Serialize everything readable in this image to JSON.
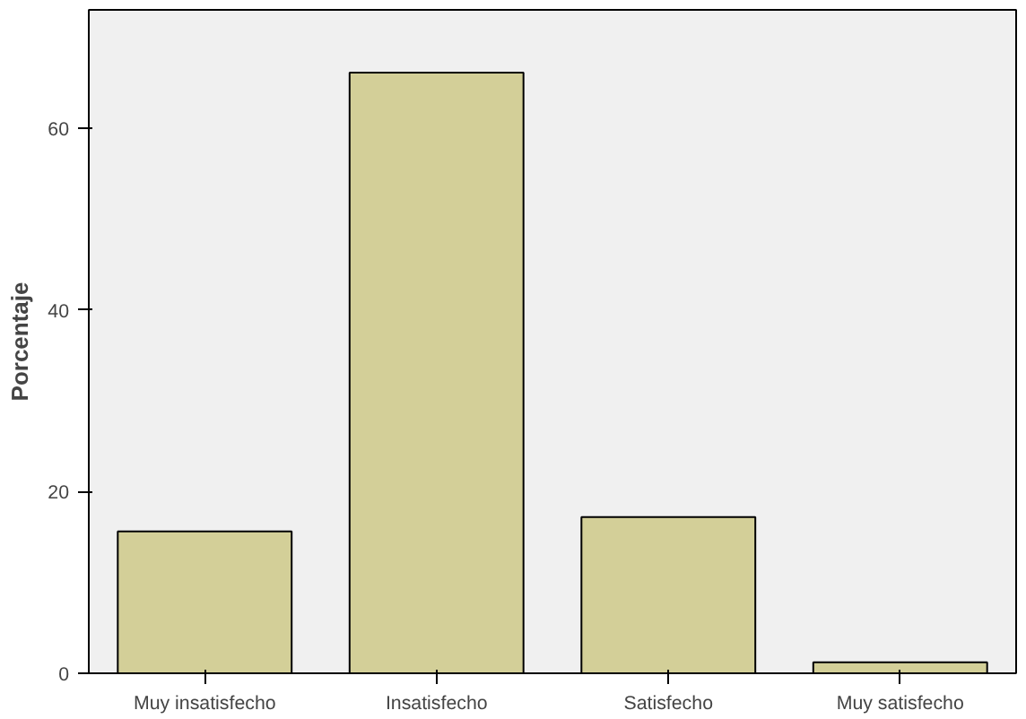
{
  "chart_data": {
    "type": "bar",
    "ylabel": "Porcentaje",
    "categories": [
      "Muy insatisfecho",
      "Insatisfecho",
      "Satisfecho",
      "Muy satisfecho"
    ],
    "values": [
      15.6,
      66.1,
      17.2,
      1.2
    ],
    "color": "#d3cf98",
    "ylim": [
      0,
      73
    ],
    "yticks": [
      0,
      20,
      40,
      60
    ],
    "grid": false
  }
}
